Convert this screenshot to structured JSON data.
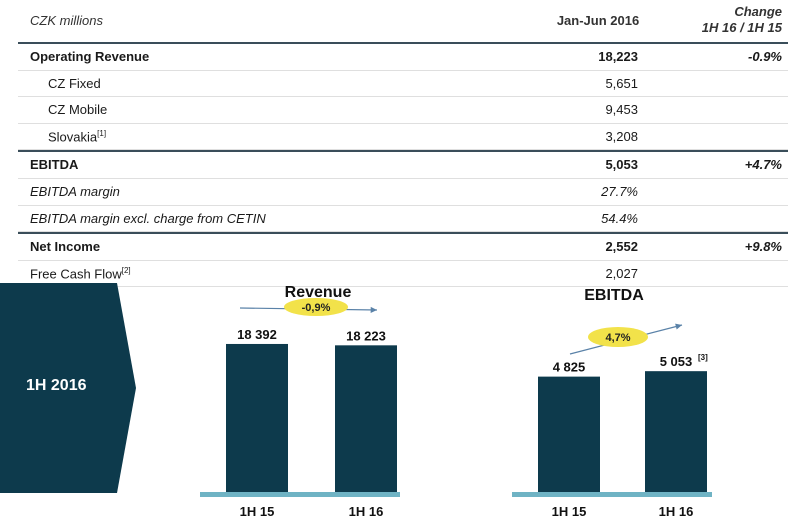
{
  "table": {
    "units_label": "CZK millions",
    "period_header": "Jan-Jun 2016",
    "change_header_line1": "Change",
    "change_header_line2": "1H 16 / 1H 15",
    "rows": [
      {
        "label": "Operating Revenue",
        "value": "18,223",
        "change": "-0.9%"
      },
      {
        "label": "CZ Fixed",
        "value": "5,651",
        "change": ""
      },
      {
        "label": "CZ Mobile",
        "value": "9,453",
        "change": ""
      },
      {
        "label": "Slovakia",
        "footnote": "[1]",
        "value": "3,208",
        "change": ""
      },
      {
        "label": "EBITDA",
        "value": "5,053",
        "change": "+4.7%"
      },
      {
        "label": "EBITDA margin",
        "value": "27.7%",
        "change": ""
      },
      {
        "label": "EBITDA margin excl. charge from CETIN",
        "value": "54.4%",
        "change": ""
      },
      {
        "label": "Net Income",
        "value": "2,552",
        "change": "+9.8%"
      },
      {
        "label": "Free Cash Flow",
        "footnote": "[2]",
        "value": "2,027",
        "change": ""
      }
    ]
  },
  "period_badge": "1H 2016",
  "colors": {
    "bar": "#0d3a4c",
    "baseline": "#6fb3c4",
    "badge": "#f2e24a",
    "arrow": "#5a82a8"
  },
  "chart_data": [
    {
      "type": "bar",
      "title": "Revenue",
      "categories": [
        "1H 15",
        "1H 16"
      ],
      "values": [
        18392,
        18223
      ],
      "value_labels": [
        "18 392",
        "18 223"
      ],
      "change_label": "-0,9%",
      "ylim": [
        0,
        20500
      ]
    },
    {
      "type": "bar",
      "title": "EBITDA",
      "categories": [
        "1H 15",
        "1H 16"
      ],
      "values": [
        4825,
        5053
      ],
      "value_labels": [
        "4 825",
        "5 053"
      ],
      "value_footnote": "[3]",
      "change_label": "4,7%",
      "ylim": [
        0,
        6900
      ]
    }
  ]
}
